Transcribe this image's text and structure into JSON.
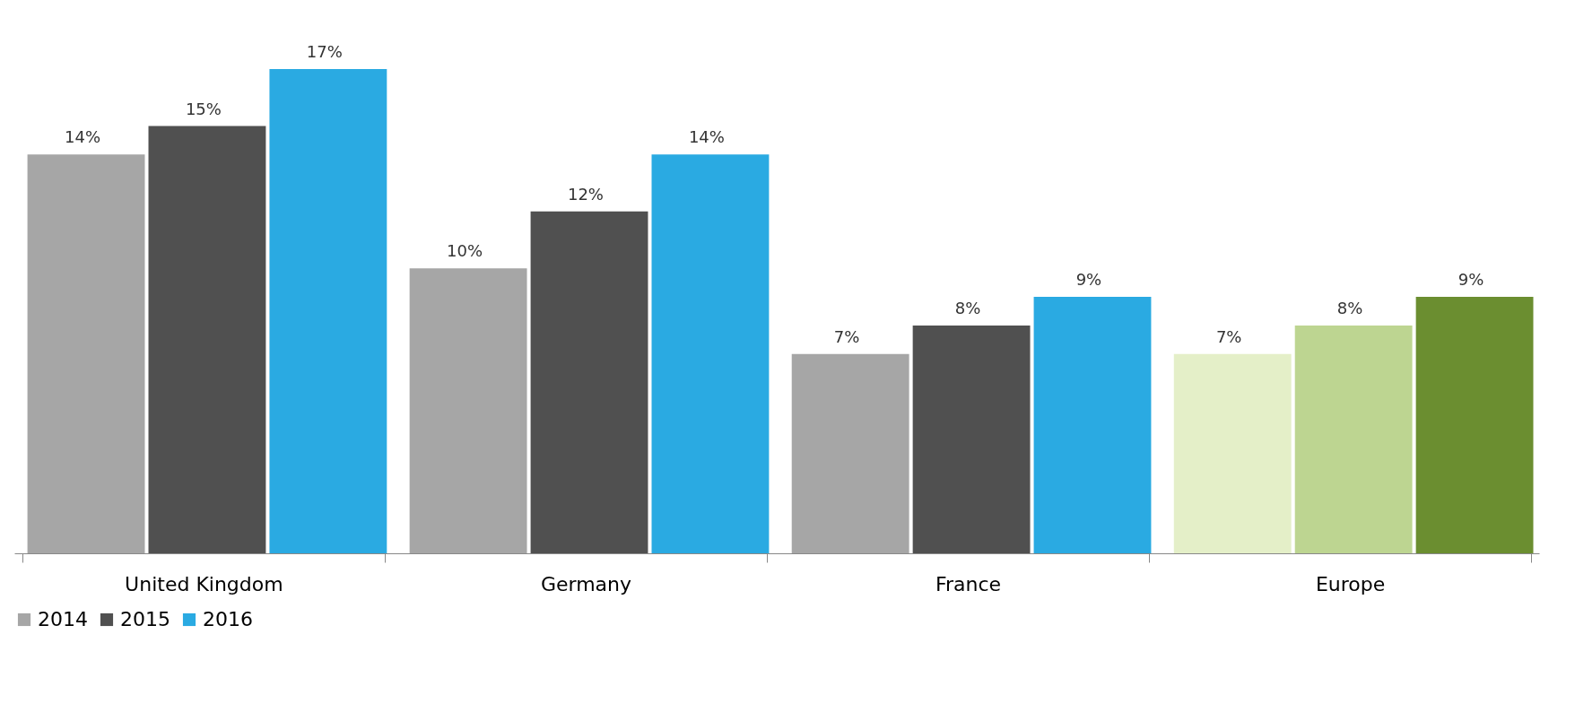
{
  "chart_data": {
    "type": "bar",
    "categories": [
      "United Kingdom",
      "Germany",
      "France",
      "Europe"
    ],
    "series": [
      {
        "name": "2014",
        "color": "#a6a6a6",
        "colors": [
          "#a6a6a6",
          "#a6a6a6",
          "#a6a6a6",
          "#e4efc8"
        ],
        "values": [
          14,
          10,
          7,
          7
        ],
        "value_labels": [
          "14%",
          "10%",
          "7%",
          "7%"
        ]
      },
      {
        "name": "2015",
        "color": "#505050",
        "colors": [
          "#505050",
          "#505050",
          "#505050",
          "#bdd591"
        ],
        "values": [
          15,
          12,
          8,
          8
        ],
        "value_labels": [
          "15%",
          "12%",
          "8%",
          "8%"
        ]
      },
      {
        "name": "2016",
        "color": "#2aaae2",
        "colors": [
          "#2aaae2",
          "#2aaae2",
          "#2aaae2",
          "#6b8e30"
        ],
        "values": [
          17,
          14,
          9,
          9
        ],
        "value_labels": [
          "17%",
          "14%",
          "9%",
          "9%"
        ]
      }
    ],
    "legend": "bottom",
    "grid": false
  }
}
